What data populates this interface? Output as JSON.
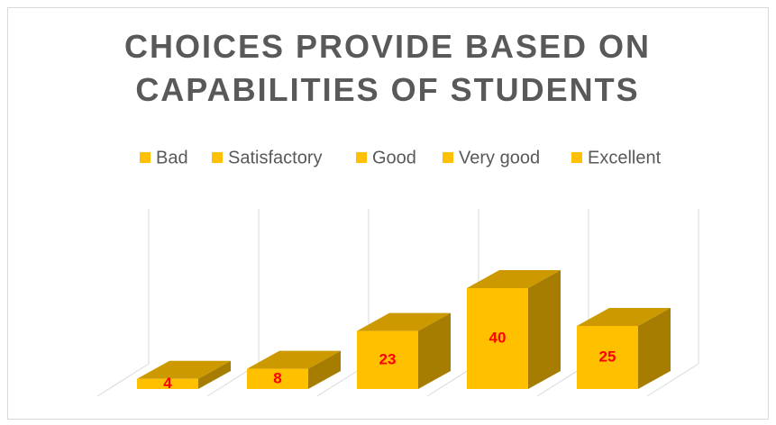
{
  "chart_data": {
    "type": "bar3d",
    "title": "CHOICES PROVIDE BASED ON CAPABILITIES OF STUDENTS",
    "categories": [
      "Bad",
      "Satisfactory",
      "Good",
      "Very good",
      "Excellent"
    ],
    "values": [
      4,
      8,
      23,
      40,
      25
    ],
    "color": "#FFC000",
    "label_color": "#FF0000",
    "legend": "top"
  }
}
